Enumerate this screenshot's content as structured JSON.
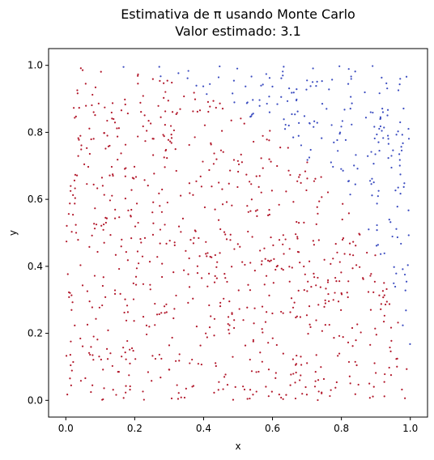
{
  "chart_data": {
    "type": "scatter",
    "title": "Estimativa de π usando Monte Carlo",
    "subtitle": "Valor estimado: 3.1",
    "xlabel": "x",
    "ylabel": "y",
    "xlim": [
      -0.05,
      1.05
    ],
    "ylim": [
      -0.05,
      1.05
    ],
    "xticks": [
      "0.0",
      "0.2",
      "0.4",
      "0.6",
      "0.8",
      "1.0"
    ],
    "yticks": [
      "0.0",
      "0.2",
      "0.4",
      "0.6",
      "0.8",
      "1.0"
    ],
    "grid": false,
    "inside_color": "#b2182b",
    "outside_color": "#3b4cc0",
    "n_points_estimated": 1000,
    "series": [
      {
        "points_sample": [
          [
            0.01,
            0.77
          ],
          [
            0.02,
            0.72
          ],
          [
            0.04,
            0.96
          ],
          [
            0.08,
            0.9
          ],
          [
            0.12,
            0.83
          ],
          [
            0.19,
            0.8
          ],
          [
            0.23,
            0.94
          ],
          [
            0.28,
            0.76
          ],
          [
            0.35,
            0.71
          ],
          [
            0.4,
            0.79
          ],
          [
            0.48,
            0.75
          ],
          [
            0.55,
            0.7
          ],
          [
            0.6,
            0.71
          ],
          [
            0.65,
            0.64
          ],
          [
            0.7,
            0.6
          ],
          [
            0.75,
            0.52
          ],
          [
            0.8,
            0.45
          ],
          [
            0.85,
            0.43
          ],
          [
            0.1,
            0.5
          ],
          [
            0.2,
            0.4
          ],
          [
            0.3,
            0.3
          ],
          [
            0.4,
            0.2
          ],
          [
            0.5,
            0.1
          ],
          [
            0.6,
            0.05
          ],
          [
            0.7,
            0.15
          ],
          [
            0.8,
            0.25
          ],
          [
            0.9,
            0.2
          ],
          [
            0.95,
            0.02
          ],
          [
            0.05,
            0.05
          ],
          [
            0.15,
            0.15
          ]
        ]
      },
      {
        "points_sample": [
          [
            0.3,
            1.0
          ],
          [
            0.36,
            0.96
          ],
          [
            0.42,
            0.98
          ],
          [
            0.5,
            0.95
          ],
          [
            0.55,
            0.88
          ],
          [
            0.65,
            0.84
          ],
          [
            0.7,
            0.82
          ],
          [
            0.75,
            0.76
          ],
          [
            0.8,
            0.7
          ],
          [
            0.85,
            0.63
          ],
          [
            0.9,
            0.56
          ],
          [
            0.95,
            0.5
          ],
          [
            0.97,
            0.42
          ],
          [
            0.98,
            0.35
          ],
          [
            0.99,
            0.25
          ],
          [
            1.0,
            0.3
          ],
          [
            0.88,
            0.9
          ],
          [
            0.93,
            0.8
          ]
        ]
      }
    ]
  }
}
